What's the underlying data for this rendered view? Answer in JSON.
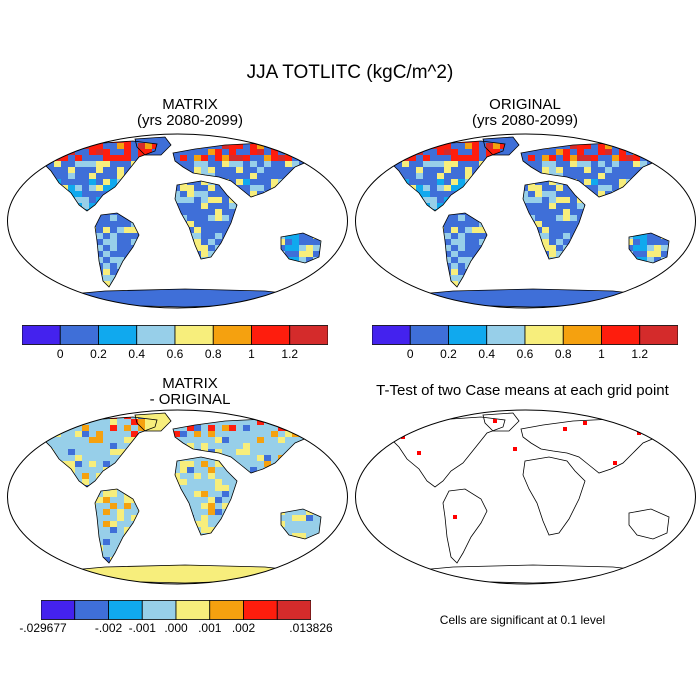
{
  "title": "JJA TOTLITC (kgC/m^2)",
  "panels": {
    "matrix": {
      "line1": "MATRIX",
      "line2": "(yrs 2080-2099)"
    },
    "original": {
      "line1": "ORIGINAL",
      "line2": "(yrs 2080-2099)"
    },
    "diff": {
      "line1": "MATRIX",
      "line2": "- ORIGINAL"
    },
    "ttest": {
      "title": "T-Test of two Case means at each grid point",
      "note": "Cells are significant at 0.1 level"
    }
  },
  "colorbar_main": {
    "colors": [
      "#4422ee",
      "#3f6fd8",
      "#10a9ee",
      "#97cfe9",
      "#f7ee7c",
      "#f5a10f",
      "#fe1d0d",
      "#d42b2b"
    ],
    "labels": [
      "0",
      "0.2",
      "0.4",
      "0.6",
      "0.8",
      "1",
      "1.2"
    ]
  },
  "colorbar_diff": {
    "colors": [
      "#4422ee",
      "#3f6fd8",
      "#10a9ee",
      "#97cfe9",
      "#f7ee7c",
      "#f5a10f",
      "#fe1d0d",
      "#d42b2b"
    ],
    "labels": [
      "-.029677",
      "-.002",
      "-.001",
      ".000",
      ".001",
      ".002",
      ".013826"
    ]
  }
}
